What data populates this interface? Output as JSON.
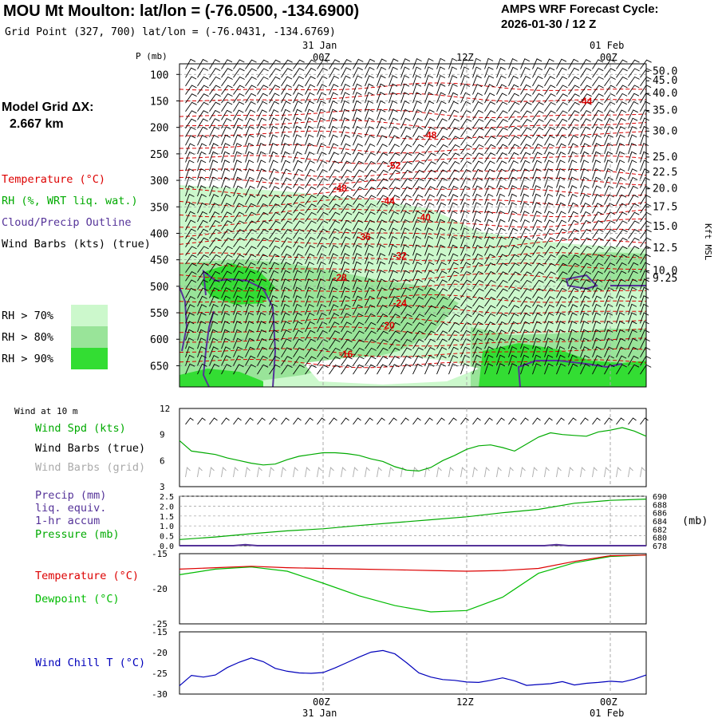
{
  "header": {
    "title": "MOU Mt Moulton:  lat/lon = (-76.0500, -134.6900)",
    "subtitle": "Grid Point (327, 700) lat/lon = (-76.0431, -134.6769)",
    "cycle_line1": "AMPS WRF Forecast Cycle:",
    "cycle_line2": "2026-01-30 / 12  Z",
    "model_grid_label": "Model Grid ΔX:",
    "model_grid_value": "2.667 km"
  },
  "colors": {
    "temperature": "#dd0000",
    "rh": "#00aa00",
    "cloud": "#553399",
    "wind": "#000000",
    "wind_grid": "#aaaaaa",
    "pressure": "#00aa00",
    "precip": "#553399",
    "dewpoint": "#00bb00",
    "windchill": "#0000bb",
    "rh70": "#ccf8cc",
    "rh80": "#99e499",
    "rh90": "#33dd33"
  },
  "time_axis": {
    "top_labels": [
      {
        "date": "31 Jan",
        "time": "00Z",
        "hour": 12
      },
      {
        "date": "",
        "time": "12Z",
        "hour": 24
      },
      {
        "date": "01 Feb",
        "time": "00Z",
        "hour": 36
      }
    ],
    "bottom_labels": [
      {
        "time": "00Z",
        "date": "31 Jan",
        "hour": 12
      },
      {
        "time": "12Z",
        "date": "",
        "hour": 24
      },
      {
        "time": "00Z",
        "date": "01 Feb",
        "hour": 36
      }
    ],
    "range_hours": [
      0,
      39
    ]
  },
  "legend": {
    "temperature": "Temperature (°C)",
    "rh": "RH (%, WRT liq. wat.)",
    "cloud": "Cloud/Precip Outline",
    "wind": "Wind Barbs (kts) (true)",
    "rh70": "RH > 70%",
    "rh80": "RH > 80%",
    "rh90": "RH > 90%",
    "wind10m_title": "Wind at 10 m",
    "wind_spd": "Wind Spd (kts)",
    "wind_barbs_true": "Wind Barbs (true)",
    "wind_barbs_grid": "Wind Barbs (grid)",
    "precip1": "Precip (mm)",
    "precip2": "liq. equiv.",
    "precip3": "1-hr accum",
    "pressure": "Pressure (mb)",
    "temp2": "Temperature (°C)",
    "dewpoint": "Dewpoint (°C)",
    "windchill": "Wind Chill T (°C)",
    "mb_unit": "(mb)"
  },
  "chart_data": [
    {
      "type": "heatmap",
      "title": "",
      "ylabel": "P (mb)",
      "y2label": "Kft MSL",
      "ylim": [
        690,
        80
      ],
      "pressure_ticks": [
        100,
        150,
        200,
        250,
        300,
        350,
        400,
        450,
        500,
        550,
        600,
        650
      ],
      "height_ticks": [
        {
          "label": "50.0",
          "p": 94
        },
        {
          "label": "45.0",
          "p": 112
        },
        {
          "label": "40.0",
          "p": 136
        },
        {
          "label": "35.0",
          "p": 168
        },
        {
          "label": "30.0",
          "p": 207
        },
        {
          "label": "25.0",
          "p": 256
        },
        {
          "label": "22.5",
          "p": 285
        },
        {
          "label": "20.0",
          "p": 316
        },
        {
          "label": "17.5",
          "p": 350
        },
        {
          "label": "15.0",
          "p": 387
        },
        {
          "label": "12.5",
          "p": 428
        },
        {
          "label": "10.0",
          "p": 471
        },
        {
          "label": "9.25",
          "p": 485
        }
      ],
      "temperature_contour_labels": [
        {
          "value": "-44",
          "hour": 34,
          "p": 151
        },
        {
          "value": "-48",
          "hour": 21,
          "p": 215
        },
        {
          "value": "-52",
          "hour": 18,
          "p": 272
        },
        {
          "value": "-48",
          "hour": 13.5,
          "p": 315
        },
        {
          "value": "-44",
          "hour": 17.5,
          "p": 339
        },
        {
          "value": "-40",
          "hour": 20.5,
          "p": 370
        },
        {
          "value": "-36",
          "hour": 15.5,
          "p": 407
        },
        {
          "value": "-32",
          "hour": 18.5,
          "p": 442
        },
        {
          "value": "-28",
          "hour": 13.5,
          "p": 484
        },
        {
          "value": "-24",
          "hour": 18.5,
          "p": 532
        },
        {
          "value": "-20",
          "hour": 17.5,
          "p": 574
        },
        {
          "value": "-16",
          "hour": 14,
          "p": 628
        }
      ]
    },
    {
      "type": "line",
      "title": "",
      "ylim": [
        3,
        12
      ],
      "yticks": [
        3,
        6,
        9,
        12
      ],
      "series": [
        {
          "name": "Wind Spd (kts)",
          "x": [
            0,
            1,
            2,
            3,
            4,
            5,
            6,
            7,
            8,
            9,
            10,
            11,
            12,
            13,
            14,
            15,
            16,
            17,
            18,
            19,
            20,
            21,
            22,
            23,
            24,
            25,
            26,
            27,
            28,
            29,
            30,
            31,
            32,
            33,
            34,
            35,
            36,
            37,
            38,
            39
          ],
          "y": [
            8.3,
            7.1,
            6.9,
            6.7,
            6.3,
            6.0,
            5.7,
            5.5,
            5.6,
            6.1,
            6.5,
            6.7,
            6.9,
            6.9,
            6.8,
            6.6,
            6.2,
            5.9,
            5.3,
            4.9,
            4.8,
            5.2,
            6.0,
            6.6,
            7.3,
            7.7,
            7.8,
            7.5,
            7.1,
            7.9,
            8.7,
            9.2,
            9.0,
            8.9,
            8.8,
            9.3,
            9.5,
            9.8,
            9.4,
            8.8
          ]
        }
      ]
    },
    {
      "type": "line",
      "title": "",
      "ylim": [
        0,
        2.5
      ],
      "yticks_left": [
        "0.0",
        "0.5",
        "1.0",
        "1.5",
        "2.0",
        "2.5"
      ],
      "yticks_right": [
        "678",
        "680",
        "682",
        "684",
        "686",
        "688",
        "690"
      ],
      "pressure_range": [
        678,
        690
      ],
      "series": [
        {
          "name": "Pressure (mb)",
          "x": [
            0,
            3,
            6,
            9,
            12,
            15,
            18,
            21,
            24,
            27,
            30,
            33,
            36,
            39
          ],
          "y": [
            679.5,
            680.1,
            680.9,
            681.6,
            682.1,
            682.9,
            683.6,
            684.3,
            685.0,
            686.0,
            686.8,
            688.3,
            689.0,
            689.3
          ]
        },
        {
          "name": "Precip (mm)",
          "x": [
            0,
            4.5,
            5.5,
            6.5,
            30.5,
            31.5,
            32.5,
            39
          ],
          "y": [
            0,
            0,
            0.05,
            0,
            0,
            0.05,
            0,
            0
          ]
        }
      ]
    },
    {
      "type": "line",
      "title": "",
      "ylim": [
        -25,
        -15
      ],
      "yticks": [
        -25,
        -20,
        -15
      ],
      "series": [
        {
          "name": "Temperature (°C)",
          "x": [
            0,
            3,
            6,
            9,
            12,
            15,
            18,
            21,
            24,
            27,
            30,
            33,
            36,
            39
          ],
          "y": [
            -17.2,
            -17.0,
            -16.8,
            -17.0,
            -17.1,
            -17.2,
            -17.3,
            -17.4,
            -17.5,
            -17.4,
            -17.1,
            -16.1,
            -15.3,
            -15.2
          ]
        },
        {
          "name": "Dewpoint (°C)",
          "x": [
            0,
            3,
            6,
            9,
            12,
            15,
            18,
            21,
            24,
            27,
            30,
            33,
            36,
            39
          ],
          "y": [
            -18.0,
            -17.2,
            -16.9,
            -17.5,
            -19.2,
            -21.0,
            -22.4,
            -23.3,
            -23.1,
            -21.2,
            -17.8,
            -16.3,
            -15.4,
            -15.2
          ]
        }
      ]
    },
    {
      "type": "line",
      "title": "",
      "ylim": [
        -30,
        -15
      ],
      "yticks": [
        -30,
        -25,
        -20,
        -15
      ],
      "series": [
        {
          "name": "Wind Chill T (°C)",
          "x": [
            0,
            1,
            2,
            3,
            4,
            5,
            6,
            7,
            8,
            9,
            10,
            11,
            12,
            13,
            14,
            15,
            16,
            17,
            18,
            19,
            20,
            21,
            22,
            23,
            24,
            25,
            26,
            27,
            28,
            29,
            30,
            31,
            32,
            33,
            34,
            35,
            36,
            37,
            38,
            39
          ],
          "y": [
            -28,
            -25.5,
            -25.9,
            -25.4,
            -23.6,
            -22.3,
            -21.3,
            -22.2,
            -23.8,
            -24.5,
            -24.9,
            -25.0,
            -24.8,
            -23.7,
            -22.4,
            -21.1,
            -19.9,
            -19.5,
            -20.3,
            -22.5,
            -24.9,
            -25.9,
            -26.5,
            -26.7,
            -27.1,
            -27.2,
            -26.7,
            -26.1,
            -26.8,
            -27.9,
            -27.7,
            -27.5,
            -27.0,
            -27.8,
            -27.4,
            -27.2,
            -26.9,
            -27.1,
            -26.4,
            -25.4
          ]
        }
      ]
    }
  ]
}
